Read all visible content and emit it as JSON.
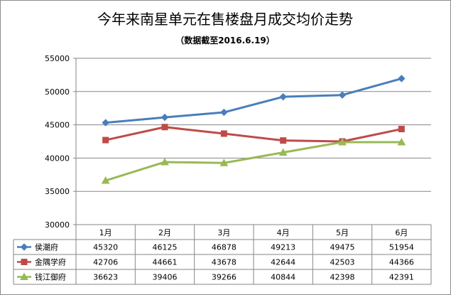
{
  "chart_data": {
    "type": "line",
    "title": "今年来南星单元在售楼盘月成交均价走势",
    "subtitle": "（数据截至2016.6.19）",
    "xlabel": "",
    "ylabel": "",
    "ylim": [
      30000,
      55000
    ],
    "yticks": [
      30000,
      35000,
      40000,
      45000,
      50000,
      55000
    ],
    "grid": true,
    "legend": "data-table",
    "categories": [
      "1月",
      "2月",
      "3月",
      "4月",
      "5月",
      "6月"
    ],
    "series": [
      {
        "name": "侯潮府",
        "values": [
          45320,
          46125,
          46878,
          49213,
          49475,
          51954
        ],
        "color": "#4a7ebb",
        "marker": "diamond"
      },
      {
        "name": "金隅学府",
        "values": [
          42706,
          44661,
          43678,
          42644,
          42503,
          44366
        ],
        "color": "#be4b48",
        "marker": "square"
      },
      {
        "name": "钱江御府",
        "values": [
          36623,
          39406,
          39266,
          40844,
          42398,
          42391
        ],
        "color": "#98b954",
        "marker": "triangle"
      }
    ]
  }
}
